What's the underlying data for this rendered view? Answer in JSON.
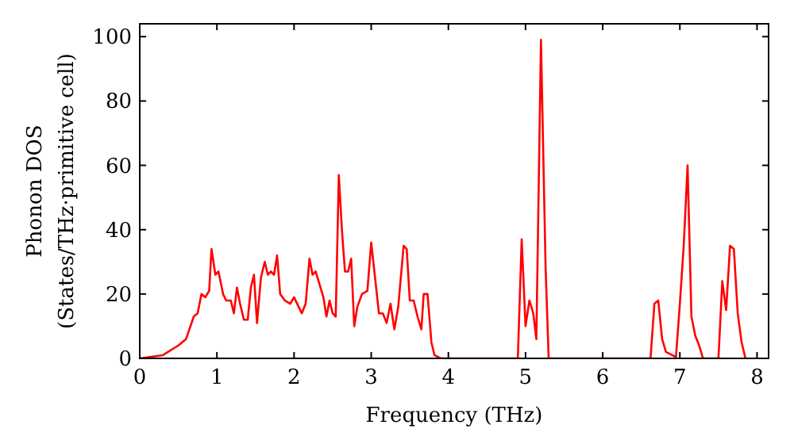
{
  "chart_data": {
    "type": "line",
    "xlabel": "Frequency (THz)",
    "ylabel": "Phonon DOS\n(States/THz·primitive cell)",
    "xlim": [
      0,
      8.15
    ],
    "ylim": [
      0,
      104
    ],
    "xticks": [
      0,
      1,
      2,
      3,
      4,
      5,
      6,
      7,
      8
    ],
    "yticks": [
      0,
      20,
      40,
      60,
      80,
      100
    ],
    "grid": false,
    "series": [
      {
        "color": "#ff0000",
        "x": [
          0,
          0.3,
          0.5,
          0.6,
          0.7,
          0.75,
          0.8,
          0.85,
          0.9,
          0.93,
          0.98,
          1.02,
          1.08,
          1.12,
          1.18,
          1.22,
          1.26,
          1.3,
          1.35,
          1.4,
          1.44,
          1.48,
          1.52,
          1.57,
          1.62,
          1.66,
          1.7,
          1.74,
          1.78,
          1.82,
          1.88,
          1.95,
          2.0,
          2.06,
          2.1,
          2.15,
          2.2,
          2.24,
          2.28,
          2.33,
          2.38,
          2.42,
          2.46,
          2.5,
          2.54,
          2.58,
          2.62,
          2.66,
          2.7,
          2.74,
          2.78,
          2.82,
          2.88,
          2.95,
          3.0,
          3.05,
          3.1,
          3.15,
          3.2,
          3.25,
          3.3,
          3.35,
          3.42,
          3.46,
          3.5,
          3.55,
          3.6,
          3.65,
          3.68,
          3.73,
          3.78,
          3.82,
          3.9,
          4.9,
          4.95,
          5.0,
          5.05,
          5.1,
          5.14,
          5.2,
          5.26,
          5.3,
          6.62,
          6.67,
          6.72,
          6.77,
          6.82,
          6.9,
          6.95,
          7.0,
          7.05,
          7.1,
          7.15,
          7.2,
          7.25,
          7.3,
          7.5,
          7.55,
          7.6,
          7.65,
          7.7,
          7.75,
          7.8,
          7.85
        ],
        "values": [
          0,
          1,
          4,
          6,
          13,
          14,
          20,
          19,
          21,
          34,
          26,
          27,
          20,
          18,
          18,
          14,
          22,
          17,
          12,
          12,
          22,
          26,
          11,
          25,
          30,
          26,
          27,
          26,
          32,
          20,
          18,
          17,
          19,
          16,
          14,
          17,
          31,
          26,
          27,
          23,
          19,
          13,
          18,
          14,
          13,
          57,
          40,
          27,
          27,
          31,
          10,
          16,
          20,
          21,
          36,
          25,
          14,
          14,
          11,
          17,
          9,
          16,
          35,
          34,
          18,
          18,
          13,
          9,
          20,
          20,
          5,
          1,
          0,
          0,
          37,
          10,
          18,
          14,
          6,
          99,
          28,
          0,
          0,
          17,
          18,
          6,
          2,
          1,
          0.5,
          17,
          35,
          60,
          13,
          7,
          4,
          0,
          0,
          24,
          15,
          35,
          34,
          14,
          5,
          0
        ]
      }
    ]
  }
}
